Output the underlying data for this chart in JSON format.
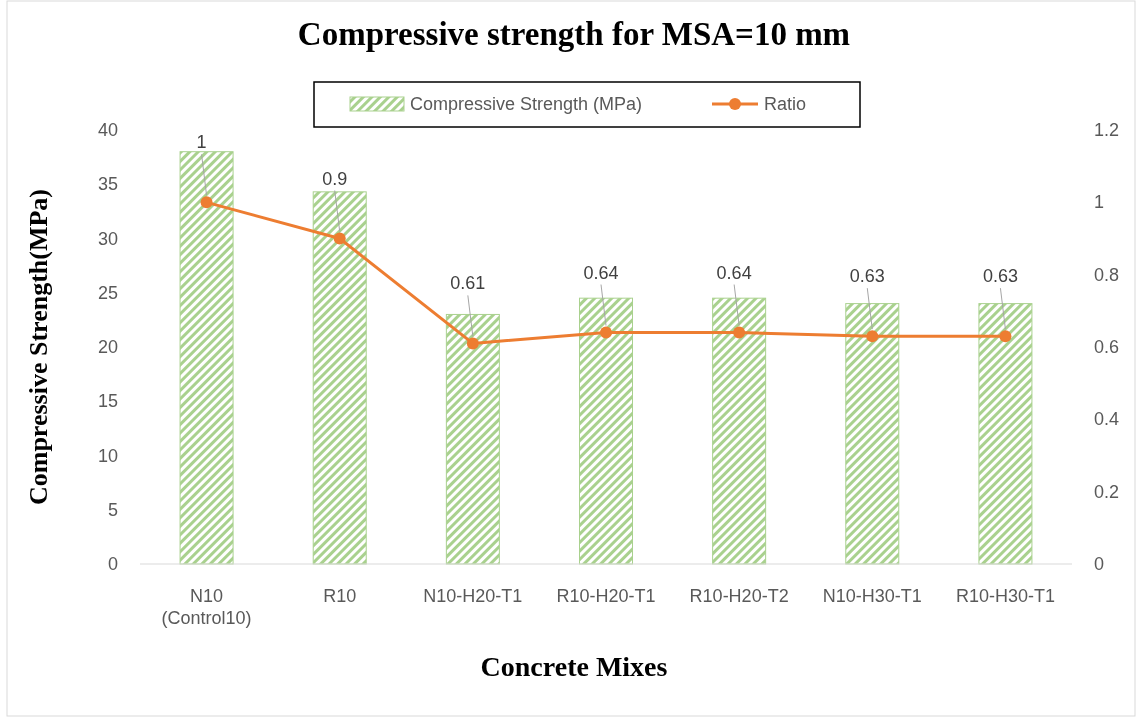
{
  "chart_data": {
    "type": "bar",
    "title": "Compressive strength for MSA=10 mm",
    "xlabel": "Concrete Mixes",
    "ylabel": "Compressive Strength(MPa)",
    "categories": [
      "N10\n(Control10)",
      "R10",
      "N10-H20-T1",
      "R10-H20-T1",
      "R10-H20-T2",
      "N10-H30-T1",
      "R10-H30-T1"
    ],
    "series": [
      {
        "name": "Compressive Strength (MPa)",
        "color": "#a9d18e",
        "values": [
          38,
          34.3,
          23,
          24.5,
          24.5,
          24,
          24
        ]
      },
      {
        "name": "Ratio",
        "type": "line",
        "axis": "y2",
        "color": "#ed7d31",
        "marker": "circle",
        "values": [
          1,
          0.9,
          0.61,
          0.64,
          0.64,
          0.63,
          0.63
        ],
        "data_labels": true
      }
    ],
    "ylim": [
      0,
      40
    ],
    "yticks": [
      0,
      5,
      10,
      15,
      20,
      25,
      30,
      35,
      40
    ],
    "y2lim": [
      0,
      1.2
    ],
    "y2ticks": [
      0,
      0.2,
      0.4,
      0.6,
      0.8,
      1,
      1.2
    ],
    "grid": false,
    "legend": "top"
  }
}
